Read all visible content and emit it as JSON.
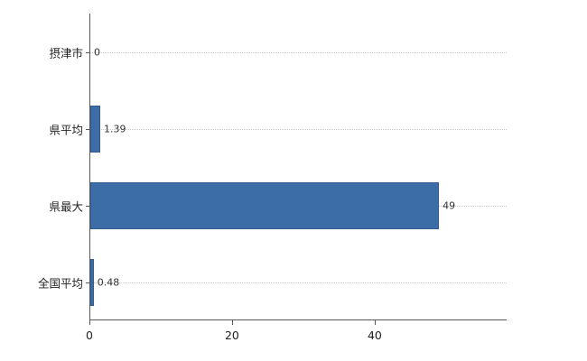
{
  "chart_data": {
    "type": "bar",
    "orientation": "horizontal",
    "title": "",
    "xlabel": "",
    "ylabel": "",
    "categories": [
      "摂津市",
      "県平均",
      "県最大",
      "全国平均"
    ],
    "values": [
      0,
      1.39,
      49,
      0.48
    ],
    "value_labels": [
      "0",
      "1.39",
      "49",
      "0.48"
    ],
    "xlim": [
      0,
      58.5
    ],
    "x_ticks": [
      0,
      20,
      40
    ],
    "x_tick_labels": [
      "0",
      "20",
      "40"
    ],
    "bar_color": "#3d6da6",
    "bar_border_color": "#335d90",
    "grid": "dotted-horizontal-per-category",
    "legend": "none",
    "background_color": "#ffffff"
  }
}
